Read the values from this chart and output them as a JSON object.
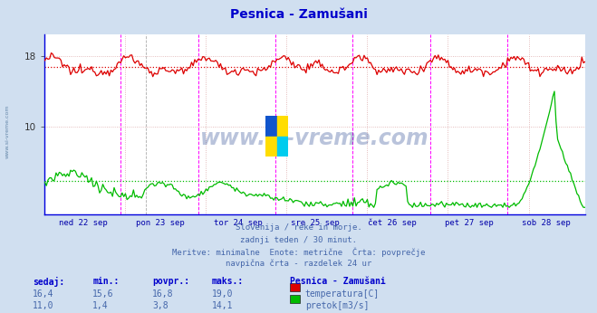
{
  "title": "Pesnica - Zamušani",
  "title_color": "#0000cc",
  "bg_color": "#d0dff0",
  "plot_bg_color": "#ffffff",
  "grid_color": "#dddddd",
  "x_labels": [
    "ned 22 sep",
    "pon 23 sep",
    "tor 24 sep",
    "sre 25 sep",
    "čet 26 sep",
    "pet 27 sep",
    "sob 28 sep"
  ],
  "x_label_color": "#0000aa",
  "y_ticks": [
    10,
    18
  ],
  "y_min": 0,
  "y_max": 20.5,
  "temp_color": "#dd0000",
  "flow_color": "#00bb00",
  "avg_temp": 16.8,
  "avg_flow": 3.8,
  "subtitle_lines": [
    "Slovenija / reke in morje.",
    "zadnji teden / 30 minut.",
    "Meritve: minimalne  Enote: metrične  Črta: povprečje",
    "navpična črta - razdelek 24 ur"
  ],
  "subtitle_color": "#4466aa",
  "table_header_color": "#0000cc",
  "table_data_color": "#4466aa",
  "watermark": "www.si-vreme.com",
  "watermark_color": "#1a3a8a",
  "left_label": "www.si-vreme.com",
  "n_points": 336,
  "temp_min": 15.6,
  "temp_max": 19.0,
  "temp_sedaj": 16.4,
  "temp_avg": 16.8,
  "flow_min": 1.4,
  "flow_max": 14.1,
  "flow_sedaj": 11.0,
  "flow_avg": 3.8,
  "n_days": 7,
  "vline_color": "#ff00ff",
  "vline2_color": "#888888",
  "axis_color": "#0000dd",
  "spine_color": "#0000dd"
}
